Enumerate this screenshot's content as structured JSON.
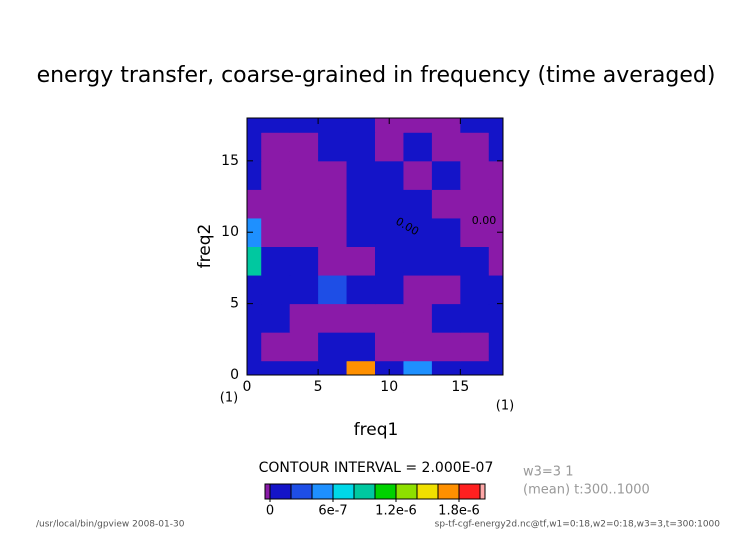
{
  "chart_data": {
    "type": "contour",
    "title": "energy transfer, coarse-grained in frequency (time averaged)",
    "xlabel": "freq1",
    "ylabel": "freq2",
    "x_unit": "(1)",
    "y_unit": "(1)",
    "x": [
      0,
      2,
      4,
      6,
      8,
      10,
      12,
      14,
      16,
      18
    ],
    "y": [
      0,
      2,
      4,
      6,
      8,
      10,
      12,
      14,
      16,
      18
    ],
    "values": [
      [
        1e-07,
        1e-07,
        1e-07,
        1e-07,
        1.6e-06,
        1e-07,
        5e-07,
        1e-07,
        1e-07,
        1e-07
      ],
      [
        1e-07,
        -1e-07,
        -1e-07,
        1e-07,
        1e-07,
        -1e-07,
        -1e-07,
        -1e-07,
        -1e-07,
        1e-07
      ],
      [
        1e-07,
        1e-07,
        -1e-07,
        -1e-07,
        -1e-07,
        -1e-07,
        -1e-07,
        1e-07,
        1e-07,
        1e-07
      ],
      [
        1e-07,
        1e-07,
        1e-07,
        3e-07,
        1e-07,
        1e-07,
        -1e-07,
        -1e-07,
        1e-07,
        1e-07
      ],
      [
        9e-07,
        1e-07,
        1e-07,
        -1e-07,
        -1e-07,
        1e-07,
        1e-07,
        1e-07,
        1e-07,
        -1e-07
      ],
      [
        4e-07,
        -1e-07,
        -1e-07,
        -1e-07,
        1e-07,
        1e-07,
        1e-07,
        1e-07,
        -1e-07,
        -1e-07
      ],
      [
        -1e-07,
        -1e-07,
        -1e-07,
        -1e-07,
        1e-07,
        1e-07,
        1e-07,
        -1e-07,
        -1e-07,
        -1e-07
      ],
      [
        1e-07,
        -1e-07,
        -1e-07,
        -1e-07,
        1e-07,
        1e-07,
        -1e-07,
        1e-07,
        -1e-07,
        -1e-07
      ],
      [
        1e-07,
        -1e-07,
        -1e-07,
        1e-07,
        1e-07,
        -1e-07,
        1e-07,
        -1e-07,
        -1e-07,
        1e-07
      ],
      [
        1e-07,
        1e-07,
        1e-07,
        1e-07,
        1e-07,
        -1e-07,
        -1e-07,
        -1e-07,
        1e-07,
        1e-07
      ]
    ],
    "xlim": [
      0,
      18
    ],
    "ylim": [
      0,
      18
    ],
    "xticks": [
      0,
      5,
      10,
      15
    ],
    "yticks": [
      0,
      5,
      10,
      15
    ],
    "contour_label": "0.00",
    "levels": [
      0,
      2e-07,
      4e-07,
      6e-07,
      8e-07,
      1e-06,
      1.2e-06,
      1.4e-06,
      1.6e-06,
      1.8e-06,
      2e-06
    ],
    "colors": [
      "#8a1aa8",
      "#1414c8",
      "#1e4ee6",
      "#1e90ff",
      "#00d8e8",
      "#00c8a0",
      "#00d200",
      "#8ee000",
      "#f0e000",
      "#ff9000",
      "#ff2020",
      "#ffa8a8"
    ],
    "colorbar_ticks": [
      0,
      6e-07,
      {
        "value": 1.2e-06,
        "label": "1.2e-6"
      },
      {
        "value": 1.8e-06,
        "label": "1.8e-6"
      }
    ],
    "contour_interval": "CONTOUR INTERVAL = 2.000E-07",
    "info": [
      "w3=3 1",
      "(mean) t:300..1000"
    ],
    "footer_left": "/usr/local/bin/gpview  2008-01-30",
    "footer_right": "sp-tf-cgf-energy2d.nc@tf,w1=0:18,w2=0:18,w3=3,t=300:1000"
  }
}
